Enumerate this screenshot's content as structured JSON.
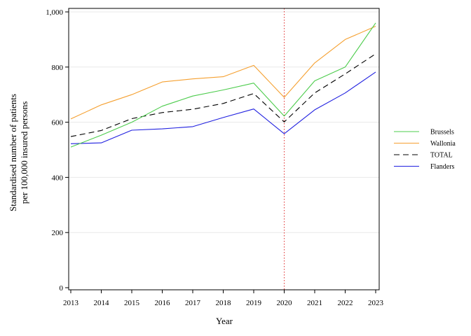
{
  "chart_data": {
    "type": "line",
    "xlabel": "Year",
    "ylabel": [
      "Standardised number of patients",
      "per 100,000 insured persons"
    ],
    "x": [
      "2013",
      "2014",
      "2015",
      "2016",
      "2017",
      "2018",
      "2019",
      "2020",
      "2021",
      "2022",
      "2023"
    ],
    "ylim": [
      0,
      1000
    ],
    "yticks": [
      0,
      200,
      400,
      600,
      800,
      1000
    ],
    "ytick_labels": [
      "0",
      "200",
      "400",
      "600",
      "800",
      "1,000"
    ],
    "grid": "horizontal",
    "legend_position": "right",
    "reference_line": {
      "x": "2020",
      "color": "#e03030",
      "style": "dotted"
    },
    "series": [
      {
        "name": "Brussels",
        "color": "#4ccc4c",
        "dash": "solid",
        "values": [
          510,
          553,
          600,
          658,
          695,
          717,
          742,
          622,
          750,
          800,
          960
        ]
      },
      {
        "name": "Wallonia",
        "color": "#f5a030",
        "dash": "solid",
        "values": [
          612,
          663,
          700,
          746,
          757,
          765,
          806,
          690,
          815,
          900,
          948
        ]
      },
      {
        "name": "TOTAL",
        "color": "#000000",
        "dash": "dashed",
        "values": [
          548,
          570,
          613,
          635,
          647,
          668,
          704,
          601,
          706,
          775,
          848
        ]
      },
      {
        "name": "Flanders",
        "color": "#2020e0",
        "dash": "solid",
        "values": [
          522,
          525,
          571,
          576,
          584,
          617,
          648,
          558,
          645,
          706,
          782
        ]
      }
    ]
  }
}
